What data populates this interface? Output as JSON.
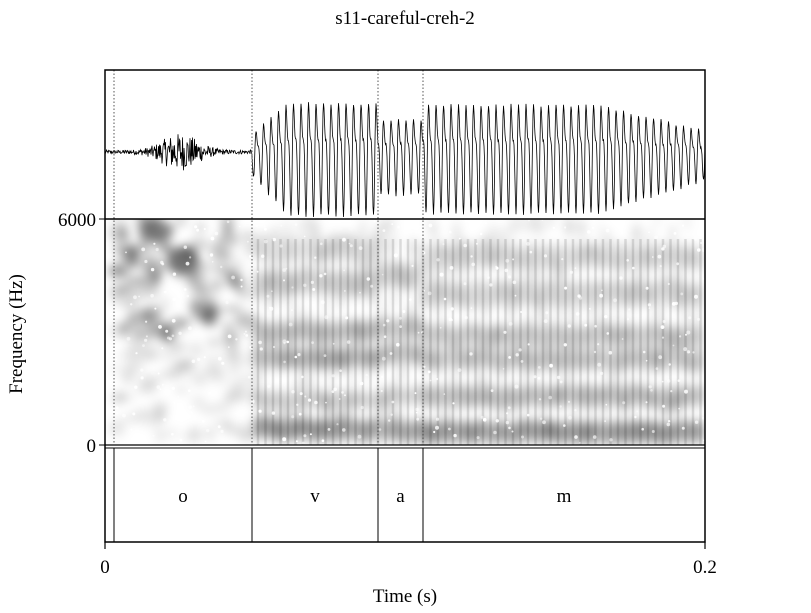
{
  "title": "s11-careful-creh-2",
  "chart_data": {
    "type": "spectrogram",
    "title": "s11-careful-creh-2",
    "xlabel": "Time (s)",
    "ylabel": "Frequency (Hz)",
    "xlim": [
      0,
      0.2
    ],
    "ylim": [
      0,
      6000
    ],
    "x_tick_labels": [
      "0",
      "0.2"
    ],
    "y_tick_labels": [
      "0",
      "6000"
    ],
    "boundaries_s": [
      0.003,
      0.049,
      0.091,
      0.106
    ],
    "segments": [
      {
        "label": "o",
        "start": 0.003,
        "end": 0.049
      },
      {
        "label": "v",
        "start": 0.049,
        "end": 0.091
      },
      {
        "label": "a",
        "start": 0.091,
        "end": 0.106
      },
      {
        "label": "m",
        "start": 0.106,
        "end": 0.2
      }
    ],
    "grid": false,
    "colors": {
      "waveform": "#000000",
      "spectrogram": "grayscale",
      "boundary": "#555555"
    }
  }
}
